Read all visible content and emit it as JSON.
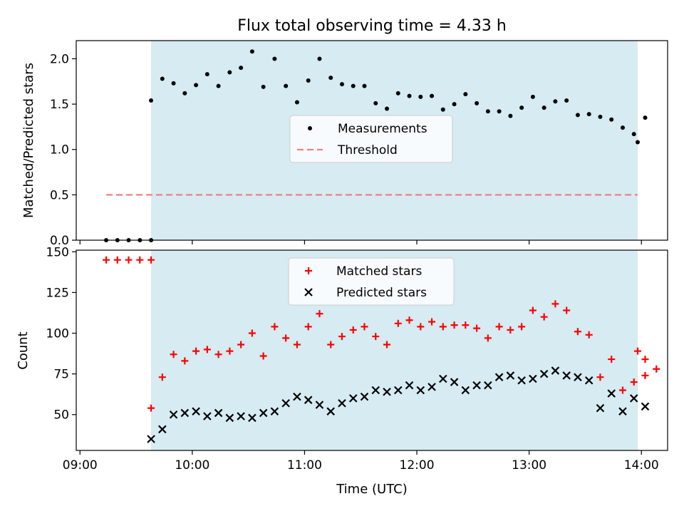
{
  "title": "Flux total observing time = 4.33 h",
  "colors": {
    "shade": "#add8e6",
    "threshold": "#f08080",
    "matched": "#ff0000",
    "predicted": "#000000",
    "measurement": "#000000"
  },
  "chart_data": [
    {
      "type": "scatter",
      "title": "Flux total observing time = 4.33 h",
      "xlabel": "",
      "ylabel": "Matched/Predicted stars",
      "xlim": [
        "08:58",
        "14:14"
      ],
      "ylim": [
        0,
        2.2
      ],
      "yticks": [
        "0.0",
        "0.5",
        "1.0",
        "1.5",
        "2.0"
      ],
      "shaded_region": [
        "09:38",
        "13:58"
      ],
      "legend_position": "center",
      "series": [
        {
          "name": "Measurements",
          "marker": "dot",
          "x": [
            "09:14",
            "09:20",
            "09:26",
            "09:32",
            "09:38",
            "09:38",
            "09:44",
            "09:50",
            "09:56",
            "10:02",
            "10:08",
            "10:14",
            "10:20",
            "10:26",
            "10:32",
            "10:38",
            "10:44",
            "10:50",
            "10:56",
            "11:02",
            "11:08",
            "11:14",
            "11:20",
            "11:26",
            "11:32",
            "11:38",
            "11:44",
            "11:50",
            "11:56",
            "12:02",
            "12:08",
            "12:14",
            "12:20",
            "12:26",
            "12:32",
            "12:38",
            "12:44",
            "12:50",
            "12:56",
            "13:02",
            "13:08",
            "13:14",
            "13:20",
            "13:26",
            "13:32",
            "13:38",
            "13:44",
            "13:50",
            "13:56",
            "14:02",
            "13:58"
          ],
          "y": [
            0,
            0,
            0,
            0,
            0,
            1.54,
            1.78,
            1.73,
            1.62,
            1.71,
            1.83,
            1.7,
            1.85,
            1.9,
            2.08,
            1.69,
            2.0,
            1.7,
            1.52,
            1.76,
            2.0,
            1.79,
            1.72,
            1.7,
            1.7,
            1.51,
            1.45,
            1.62,
            1.59,
            1.58,
            1.59,
            1.44,
            1.5,
            1.61,
            1.51,
            1.42,
            1.42,
            1.37,
            1.46,
            1.58,
            1.46,
            1.53,
            1.54,
            1.38,
            1.39,
            1.36,
            1.33,
            1.24,
            1.17,
            1.35,
            1.08
          ]
        },
        {
          "name": "Threshold",
          "marker": "dashed-line",
          "x": [
            "09:14",
            "13:58"
          ],
          "y": [
            0.5,
            0.5
          ]
        }
      ]
    },
    {
      "type": "scatter",
      "title": "",
      "xlabel": "Time (UTC)",
      "ylabel": "Count",
      "xlim": [
        "08:58",
        "14:14"
      ],
      "ylim": [
        28,
        151
      ],
      "yticks": [
        "50",
        "75",
        "100",
        "125",
        "150"
      ],
      "xticks": [
        "09:00",
        "10:00",
        "11:00",
        "12:00",
        "13:00",
        "14:00"
      ],
      "shaded_region": [
        "09:38",
        "13:58"
      ],
      "legend_position": "upper center",
      "series": [
        {
          "name": "Matched stars",
          "marker": "plus",
          "x": [
            "09:14",
            "09:20",
            "09:26",
            "09:32",
            "09:38",
            "09:38",
            "09:44",
            "09:50",
            "09:56",
            "10:02",
            "10:08",
            "10:14",
            "10:20",
            "10:26",
            "10:32",
            "10:38",
            "10:44",
            "10:50",
            "10:56",
            "11:02",
            "11:08",
            "11:14",
            "11:20",
            "11:26",
            "11:32",
            "11:38",
            "11:44",
            "11:50",
            "11:56",
            "12:02",
            "12:08",
            "12:14",
            "12:20",
            "12:26",
            "12:32",
            "12:38",
            "12:44",
            "12:50",
            "12:56",
            "13:02",
            "13:08",
            "13:14",
            "13:20",
            "13:26",
            "13:32",
            "13:38",
            "13:44",
            "13:50",
            "13:56",
            "14:02",
            "13:58",
            "14:02",
            "14:08"
          ],
          "y": [
            145,
            145,
            145,
            145,
            145,
            54,
            73,
            87,
            83,
            89,
            90,
            87,
            89,
            93,
            100,
            86,
            104,
            97,
            93,
            104,
            112,
            93,
            98,
            102,
            104,
            98,
            93,
            106,
            108,
            104,
            107,
            104,
            105,
            105,
            103,
            97,
            104,
            102,
            104,
            114,
            110,
            118,
            114,
            101,
            99,
            73,
            84,
            65,
            70,
            74,
            89,
            84,
            78
          ]
        },
        {
          "name": "Predicted stars",
          "marker": "x",
          "x": [
            "09:38",
            "09:44",
            "09:50",
            "09:56",
            "10:02",
            "10:08",
            "10:14",
            "10:20",
            "10:26",
            "10:32",
            "10:38",
            "10:44",
            "10:50",
            "10:56",
            "11:02",
            "11:08",
            "11:14",
            "11:20",
            "11:26",
            "11:32",
            "11:38",
            "11:44",
            "11:50",
            "11:56",
            "12:02",
            "12:08",
            "12:14",
            "12:20",
            "12:26",
            "12:32",
            "12:38",
            "12:44",
            "12:50",
            "12:56",
            "13:02",
            "13:08",
            "13:14",
            "13:20",
            "13:26",
            "13:32",
            "13:38",
            "13:44",
            "13:50",
            "13:56",
            "14:02"
          ],
          "y": [
            35,
            41,
            50,
            51,
            52,
            49,
            51,
            48,
            49,
            48,
            51,
            52,
            57,
            61,
            59,
            56,
            52,
            57,
            60,
            61,
            65,
            64,
            65,
            68,
            65,
            67,
            72,
            70,
            65,
            68,
            68,
            73,
            74,
            71,
            72,
            75,
            77,
            74,
            73,
            71,
            54,
            63,
            52,
            60,
            55
          ]
        }
      ]
    }
  ]
}
